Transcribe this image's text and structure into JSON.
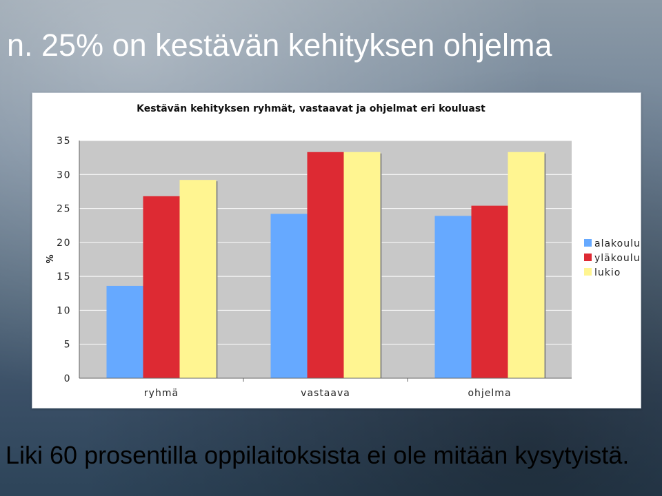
{
  "slide": {
    "title": "n. 25% on kestävän kehityksen ohjelma",
    "footer": "Liki 60 prosentilla oppilaitoksista ei ole mitään kysytyistä."
  },
  "chart_data": {
    "type": "bar",
    "title": "Kestävän kehityksen ryhmät, vastaavat ja ohjelmat eri kouluast",
    "xlabel": "",
    "ylabel": "%",
    "ylim": [
      0,
      35
    ],
    "yticks": [
      0,
      5,
      10,
      15,
      20,
      25,
      30,
      35
    ],
    "categories": [
      "ryhmä",
      "vastaava",
      "ohjelma"
    ],
    "series": [
      {
        "name": "alakoulu",
        "color": "#66a9ff",
        "values": [
          13.6,
          24.2,
          23.9
        ]
      },
      {
        "name": "yläkoulu",
        "color": "#dd2a33",
        "values": [
          26.8,
          33.3,
          25.4
        ]
      },
      {
        "name": "lukio",
        "color": "#fff591",
        "values": [
          29.2,
          33.3,
          33.3
        ]
      }
    ],
    "grid": true,
    "legend": "right",
    "plot_background": "#c8c8c8"
  }
}
